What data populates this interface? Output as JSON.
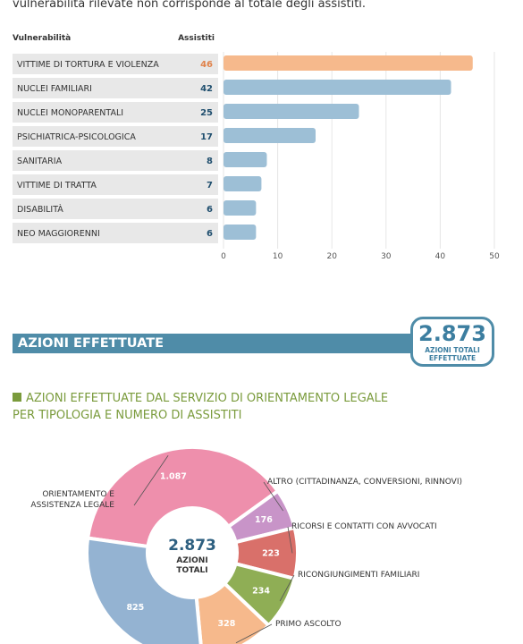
{
  "intro": "vulnerabilità rilevate non corrisponde al totale degli assistiti.",
  "section": {
    "title": "AZIONI EFFETTUATE",
    "badge_number": "2.873",
    "badge_caption": "AZIONI TOTALI EFFETTUATE"
  },
  "chart_data": [
    {
      "type": "bar",
      "orientation": "horizontal",
      "category_header": "Vulnerabilità",
      "value_header": "Assistiti",
      "categories": [
        "VITTIME DI TORTURA E VIOLENZA",
        "NUCLEI FAMILIARI",
        "NUCLEI MONOPARENTALI",
        "PSICHIATRICA-PSICOLOGICA",
        "SANITARIA",
        "VITTIME DI TRATTA",
        "DISABILITÀ",
        "NEO MAGGIORENNI"
      ],
      "values": [
        46,
        42,
        25,
        17,
        8,
        7,
        6,
        6
      ],
      "colors": [
        "#f6b98c",
        "#9dbfd6",
        "#9dbfd6",
        "#9dbfd6",
        "#9dbfd6",
        "#9dbfd6",
        "#9dbfd6",
        "#9dbfd6"
      ],
      "label_colors": [
        "#e0824a",
        "#1f4e6e",
        "#1f4e6e",
        "#1f4e6e",
        "#1f4e6e",
        "#1f4e6e",
        "#1f4e6e",
        "#1f4e6e"
      ],
      "xlim": [
        0,
        50
      ],
      "xticks": [
        0,
        10,
        20,
        30,
        40,
        50
      ],
      "grid": true
    },
    {
      "type": "donut",
      "title": "AZIONI EFFETTUATE DAL SERVIZIO DI ORIENTAMENTO LEGALE PER TIPOLOGIA E NUMERO DI ASSISTITI",
      "categories": [
        "ORIENTAMENTO E ASSISTENZA LEGALE",
        "ALTRO (CITTADINANZA, CONVERSIONI, RINNOVI)",
        "RICORSI E CONTATTI CON AVVOCATI",
        "RICONGIUNGIMENTI FAMILIARI",
        "PRIMO ASCOLTO",
        null
      ],
      "values": [
        1087,
        176,
        223,
        234,
        328,
        825
      ],
      "value_labels": [
        "1.087",
        "176",
        "223",
        "234",
        "328",
        "825"
      ],
      "colors": [
        "#ee8fac",
        "#c894c8",
        "#d9706a",
        "#8fae55",
        "#f6b98c",
        "#94b3d2"
      ],
      "total": {
        "value": 2873,
        "label": "2.873"
      },
      "total_caption": "AZIONI TOTALI"
    }
  ]
}
